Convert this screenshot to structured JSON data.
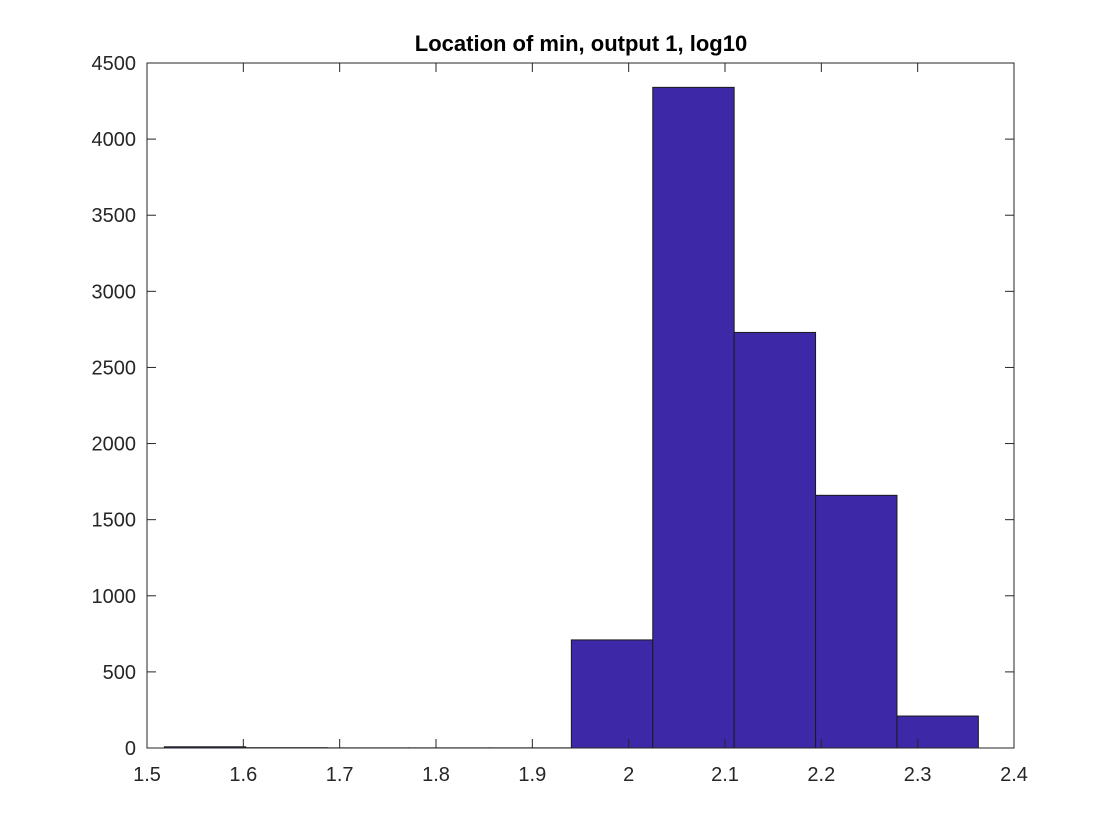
{
  "chart_data": {
    "type": "bar",
    "title": "Location of min, output 1, log10",
    "xlabel": "",
    "ylabel": "",
    "xlim": [
      1.5,
      2.4
    ],
    "ylim": [
      0,
      4500
    ],
    "xticks": [
      "1.5",
      "1.6",
      "1.7",
      "1.8",
      "1.9",
      "2",
      "2.1",
      "2.2",
      "2.3",
      "2.4"
    ],
    "yticks": [
      "0",
      "500",
      "1000",
      "1500",
      "2000",
      "2500",
      "3000",
      "3500",
      "4000",
      "4500"
    ],
    "bin_edges": [
      1.518,
      1.6025,
      1.687,
      1.7715,
      1.856,
      1.9405,
      2.025,
      2.1095,
      2.194,
      2.2785,
      2.363
    ],
    "values": [
      8,
      2,
      1,
      1,
      1,
      710,
      4340,
      2730,
      1660,
      210
    ],
    "grid": false,
    "legend": "none",
    "colors": {
      "bar_fill": "#3d28a8",
      "bar_edge": "#1a1a1a",
      "axis": "#262626"
    }
  }
}
